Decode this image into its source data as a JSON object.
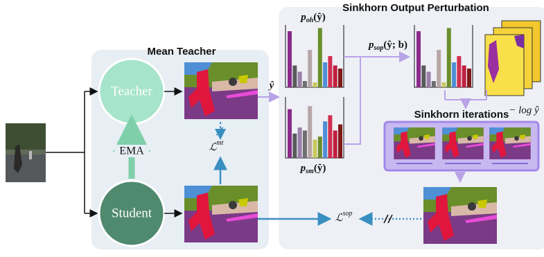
{
  "panels": {
    "mean_teacher": {
      "title": "Mean Teacher"
    },
    "sinkhorn": {
      "title": "Sinkhorn Output Perturbation"
    }
  },
  "nodes": {
    "teacher": "Teacher",
    "student": "Student",
    "ema": "EMA",
    "sinkhorn_iterations": "Sinkhorn iterations"
  },
  "math": {
    "y_hat": "ŷ",
    "loss_mt": {
      "base": "ℒ",
      "sup": "mt"
    },
    "loss_sop": {
      "base": "ℒ",
      "sup": "sop"
    },
    "p_oh": {
      "base": "p",
      "sub": "oh",
      "arg": "(ŷ)"
    },
    "p_sm": {
      "base": "p",
      "sub": "sm",
      "arg": "(ŷ)"
    },
    "p_sop": {
      "base": "p",
      "sub": "sop",
      "arg": "(ŷ; b)"
    },
    "neg_log": "− log ŷ"
  }
}
